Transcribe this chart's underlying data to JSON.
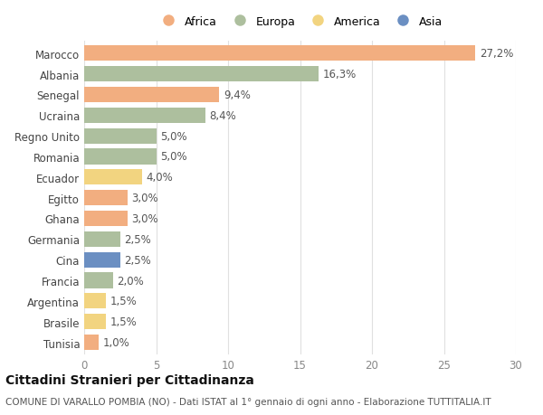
{
  "countries": [
    "Marocco",
    "Albania",
    "Senegal",
    "Ucraina",
    "Regno Unito",
    "Romania",
    "Ecuador",
    "Egitto",
    "Ghana",
    "Germania",
    "Cina",
    "Francia",
    "Argentina",
    "Brasile",
    "Tunisia"
  ],
  "values": [
    27.2,
    16.3,
    9.4,
    8.4,
    5.0,
    5.0,
    4.0,
    3.0,
    3.0,
    2.5,
    2.5,
    2.0,
    1.5,
    1.5,
    1.0
  ],
  "labels": [
    "27,2%",
    "16,3%",
    "9,4%",
    "8,4%",
    "5,0%",
    "5,0%",
    "4,0%",
    "3,0%",
    "3,0%",
    "2,5%",
    "2,5%",
    "2,0%",
    "1,5%",
    "1,5%",
    "1,0%"
  ],
  "continents": [
    "Africa",
    "Europa",
    "Africa",
    "Europa",
    "Europa",
    "Europa",
    "America",
    "Africa",
    "Africa",
    "Europa",
    "Asia",
    "Europa",
    "America",
    "America",
    "Africa"
  ],
  "colors": {
    "Africa": "#F2AE80",
    "Europa": "#ADBF9E",
    "America": "#F2D480",
    "Asia": "#6B8FC2"
  },
  "title": "Cittadini Stranieri per Cittadinanza",
  "subtitle": "COMUNE DI VARALLO POMBIA (NO) - Dati ISTAT al 1° gennaio di ogni anno - Elaborazione TUTTITALIA.IT",
  "xlim": [
    0,
    30
  ],
  "xticks": [
    0,
    5,
    10,
    15,
    20,
    25,
    30
  ],
  "bg_color": "#ffffff",
  "grid_color": "#e0e0e0",
  "bar_height": 0.75,
  "label_fontsize": 8.5,
  "ytick_fontsize": 8.5,
  "xtick_fontsize": 8.5,
  "title_fontsize": 10,
  "subtitle_fontsize": 7.5,
  "legend_fontsize": 9
}
